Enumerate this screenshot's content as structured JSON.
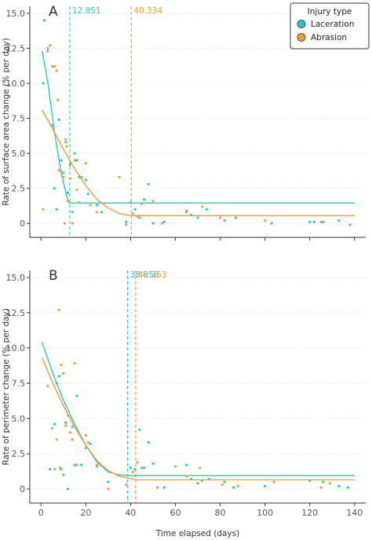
{
  "colors": {
    "laceration": "#1fcccc",
    "abrasion": "#f39c32",
    "axis": "#333333",
    "grid": "#d8d8d8"
  },
  "legend": {
    "title": "Injury type",
    "items": [
      {
        "label": "Laceration",
        "color_key": "laceration"
      },
      {
        "label": "Abrasion",
        "color_key": "abrasion"
      }
    ]
  },
  "x_axis_label": "Time elapsed (days)",
  "chart_data": [
    {
      "panel": "A",
      "type": "scatter",
      "ylabel": "Rate of surface area change (% per day)",
      "xlim": [
        -5,
        145
      ],
      "ylim": [
        -1,
        15.5
      ],
      "x_ticks": [
        0,
        20,
        40,
        60,
        80,
        100,
        120,
        140
      ],
      "y_ticks": [
        0,
        2.5,
        5.0,
        7.5,
        10.0,
        12.5,
        15.0
      ],
      "y_tick_labels": [
        "0",
        "2.5",
        "5.0",
        "7.5",
        "10.0",
        "12.5",
        "15.0"
      ],
      "vlines": [
        {
          "x": 12.851,
          "label": "12.851",
          "series": "laceration"
        },
        {
          "x": 40.334,
          "label": "40.334",
          "series": "abrasion"
        }
      ],
      "series": [
        {
          "name": "Laceration",
          "color_key": "laceration",
          "points": [
            [
              1,
              10
            ],
            [
              1.5,
              14.5
            ],
            [
              3,
              12.3
            ],
            [
              5,
              7
            ],
            [
              6,
              2.5
            ],
            [
              7,
              1
            ],
            [
              8,
              7.4
            ],
            [
              9,
              4.5
            ],
            [
              10,
              3.6
            ],
            [
              11,
              5.8
            ],
            [
              12,
              2.2
            ],
            [
              13,
              4.2
            ],
            [
              14,
              0.8
            ],
            [
              15,
              5
            ],
            [
              16,
              4.5
            ],
            [
              17,
              3.3
            ],
            [
              20,
              3.1
            ],
            [
              21,
              2.1
            ],
            [
              25,
              1.3
            ],
            [
              27,
              0.8
            ],
            [
              38,
              0.1
            ],
            [
              40,
              1.5
            ],
            [
              42,
              1
            ],
            [
              44,
              0.4
            ],
            [
              46,
              1.7
            ],
            [
              48,
              2.8
            ],
            [
              50,
              0
            ],
            [
              55,
              0.1
            ],
            [
              65,
              0.8
            ],
            [
              67,
              0.6
            ],
            [
              70,
              0.4
            ],
            [
              74,
              1
            ],
            [
              82,
              0.2
            ],
            [
              87,
              0.4
            ],
            [
              103,
              0
            ],
            [
              120,
              0.1
            ],
            [
              122,
              0.1
            ],
            [
              126,
              0.1
            ],
            [
              133,
              0.2
            ],
            [
              138,
              -0.1
            ]
          ],
          "fit": [
            [
              0.5,
              12.3
            ],
            [
              3,
              10.1
            ],
            [
              6,
              6.5
            ],
            [
              9,
              3.6
            ],
            [
              12,
              1.6
            ],
            [
              12.851,
              1.45
            ],
            [
              140,
              1.45
            ]
          ]
        },
        {
          "name": "Abrasion",
          "color_key": "abrasion",
          "points": [
            [
              1,
              1
            ],
            [
              3,
              12.5
            ],
            [
              4,
              12.7
            ],
            [
              5,
              11.2
            ],
            [
              6,
              11.2
            ],
            [
              7,
              10.9
            ],
            [
              7.5,
              8.8
            ],
            [
              8,
              3.8
            ],
            [
              9,
              3.7
            ],
            [
              10,
              3.3
            ],
            [
              10.5,
              0
            ],
            [
              11,
              6
            ],
            [
              11.5,
              5.5
            ],
            [
              12,
              1.6
            ],
            [
              13,
              3.2
            ],
            [
              14,
              0
            ],
            [
              15,
              4.5
            ],
            [
              16,
              2.4
            ],
            [
              17,
              1.5
            ],
            [
              18,
              3.3
            ],
            [
              20,
              4.3
            ],
            [
              22,
              1.3
            ],
            [
              25,
              0.8
            ],
            [
              35,
              3.3
            ],
            [
              38,
              -0.1
            ],
            [
              41,
              0.7
            ],
            [
              43,
              0.5
            ],
            [
              45,
              1.4
            ],
            [
              50,
              1.6
            ],
            [
              54,
              0
            ],
            [
              65,
              0.9
            ],
            [
              72,
              1.2
            ],
            [
              80,
              0.4
            ],
            [
              100,
              0.2
            ],
            [
              125,
              0.1
            ]
          ],
          "fit": [
            [
              0.5,
              8.1
            ],
            [
              5,
              6.8
            ],
            [
              10,
              5.3
            ],
            [
              15,
              3.9
            ],
            [
              20,
              2.7
            ],
            [
              25,
              1.7
            ],
            [
              30,
              1.1
            ],
            [
              35,
              0.7
            ],
            [
              40.334,
              0.55
            ],
            [
              140,
              0.55
            ]
          ]
        }
      ]
    },
    {
      "panel": "B",
      "type": "scatter",
      "ylabel": "Rate of perimeter change (% per day)",
      "xlim": [
        -5,
        145
      ],
      "ylim": [
        -1,
        15.5
      ],
      "x_ticks": [
        0,
        20,
        40,
        60,
        80,
        100,
        120,
        140
      ],
      "x_tick_labels": [
        "0",
        "20",
        "40",
        "60",
        "80",
        "100",
        "120",
        "140"
      ],
      "y_ticks": [
        0,
        2.5,
        5.0,
        7.5,
        10.0,
        12.5,
        15.0
      ],
      "y_tick_labels": [
        "0",
        "2.5",
        "5.0",
        "7.5",
        "10.0",
        "12.5",
        "15.0"
      ],
      "vlines": [
        {
          "x": 38.656,
          "label": "38.656",
          "series": "laceration"
        },
        {
          "x": 42.253,
          "label": "42.253",
          "series": "abrasion"
        }
      ],
      "series": [
        {
          "name": "Laceration",
          "color_key": "laceration",
          "points": [
            [
              4,
              1.4
            ],
            [
              6,
              4.6
            ],
            [
              7,
              7.5
            ],
            [
              8,
              8
            ],
            [
              9,
              1.4
            ],
            [
              10,
              1
            ],
            [
              11,
              4.7
            ],
            [
              12,
              0
            ],
            [
              14,
              4.4
            ],
            [
              15,
              1.7
            ],
            [
              16,
              6.6
            ],
            [
              18,
              1.7
            ],
            [
              20,
              2.9
            ],
            [
              22,
              3.2
            ],
            [
              25,
              1.6
            ],
            [
              30,
              0.5
            ],
            [
              38,
              0.3
            ],
            [
              40,
              1.5
            ],
            [
              42,
              1.4
            ],
            [
              44,
              4.2
            ],
            [
              46,
              1.5
            ],
            [
              48,
              3.3
            ],
            [
              50,
              1.8
            ],
            [
              55,
              0.1
            ],
            [
              65,
              1.7
            ],
            [
              67,
              0.7
            ],
            [
              70,
              0.4
            ],
            [
              72,
              0.6
            ],
            [
              75,
              0.7
            ],
            [
              82,
              0.5
            ],
            [
              86,
              0.1
            ],
            [
              100,
              0.2
            ],
            [
              120,
              0.6
            ],
            [
              126,
              0.5
            ],
            [
              133,
              0.2
            ],
            [
              137,
              0.1
            ]
          ],
          "fit": [
            [
              0.5,
              10.4
            ],
            [
              5,
              8.3
            ],
            [
              10,
              6.3
            ],
            [
              15,
              4.6
            ],
            [
              20,
              3.1
            ],
            [
              25,
              1.9
            ],
            [
              30,
              1.2
            ],
            [
              35,
              1
            ],
            [
              38.656,
              0.95
            ],
            [
              140,
              0.95
            ]
          ]
        },
        {
          "name": "Abrasion",
          "color_key": "abrasion",
          "points": [
            [
              3,
              7.3
            ],
            [
              5,
              4.3
            ],
            [
              6,
              1.4
            ],
            [
              7,
              3.5
            ],
            [
              8,
              12.7
            ],
            [
              8.5,
              1.5
            ],
            [
              9,
              8.8
            ],
            [
              10,
              8.2
            ],
            [
              11,
              4.5
            ],
            [
              12,
              5.2
            ],
            [
              13,
              4
            ],
            [
              14,
              3.5
            ],
            [
              15,
              8.9
            ],
            [
              16,
              1.7
            ],
            [
              20,
              3.8
            ],
            [
              21,
              3.3
            ],
            [
              25,
              1.7
            ],
            [
              30,
              0
            ],
            [
              38,
              0.3
            ],
            [
              41,
              1.2
            ],
            [
              43,
              1.9
            ],
            [
              45,
              1.5
            ],
            [
              52,
              0.1
            ],
            [
              60,
              1.6
            ],
            [
              65,
              0.9
            ],
            [
              71,
              1.5
            ],
            [
              81,
              0.3
            ],
            [
              88,
              0.2
            ],
            [
              104,
              0.5
            ],
            [
              125,
              0.1
            ],
            [
              129,
              0.4
            ]
          ],
          "fit": [
            [
              0.5,
              9.3
            ],
            [
              5,
              7.6
            ],
            [
              10,
              5.9
            ],
            [
              15,
              4.4
            ],
            [
              20,
              3.1
            ],
            [
              25,
              2
            ],
            [
              30,
              1.3
            ],
            [
              35,
              0.9
            ],
            [
              42.253,
              0.65
            ],
            [
              140,
              0.65
            ]
          ]
        }
      ]
    }
  ]
}
